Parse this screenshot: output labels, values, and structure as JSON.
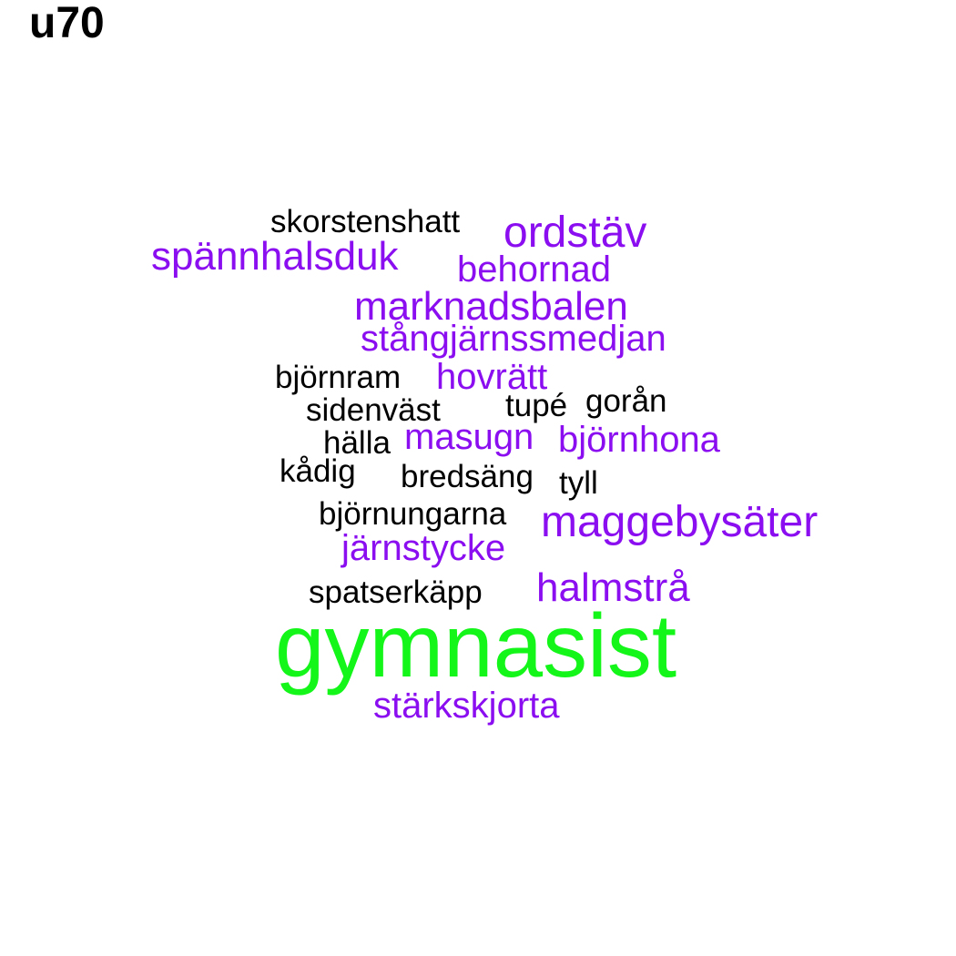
{
  "title": "u70",
  "colors": {
    "black": "#000000",
    "purple": "#8a0ef0",
    "green": "#14f51a"
  },
  "words": {
    "skorstenshatt": "skorstenshatt",
    "ordstav": "ordstäv",
    "spannhalsduk": "spännhalsduk",
    "behornad": "behornad",
    "marknadsbalen": "marknadsbalen",
    "stangjarnssmedjan": "stångjärnssmedjan",
    "bjornram": "björnram",
    "hovratt": "hovrätt",
    "sidenvast": "sidenväst",
    "tupe": "tupé",
    "goran": "gorån",
    "halla": "hälla",
    "masugn": "masugn",
    "bjornhona": "björnhona",
    "kadig": "kådig",
    "bredsang": "bredsäng",
    "tyll": "tyll",
    "bjornungarna": "björnungarna",
    "maggebysater": "maggebysäter",
    "jarnstycke": "järnstycke",
    "spatserkapp": "spatserkäpp",
    "halmstra": "halmstrå",
    "gymnasist": "gymnasist",
    "starkskjorta": "stärkskjorta"
  }
}
